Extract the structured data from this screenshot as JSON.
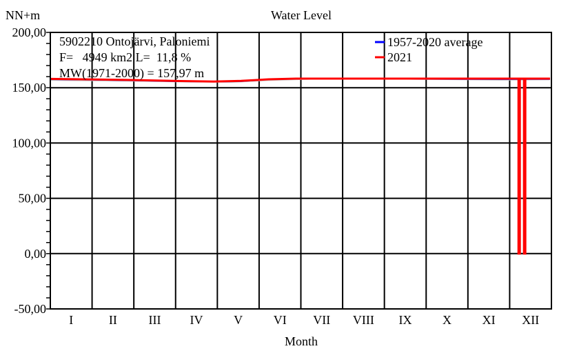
{
  "chart_data": {
    "type": "line",
    "title": "Water Level",
    "ylabel": "NN+m",
    "xlabel": "Month",
    "ylim": [
      -50,
      200
    ],
    "yticks": [
      "200,00",
      "150,00",
      "100,00",
      "50,00",
      "0,00",
      "-50,00"
    ],
    "ytick_values": [
      200,
      150,
      100,
      50,
      0,
      -50
    ],
    "categories": [
      "I",
      "II",
      "III",
      "IV",
      "V",
      "VI",
      "VII",
      "VIII",
      "IX",
      "X",
      "XI",
      "XII"
    ],
    "grid": true,
    "legend_position": "top-right",
    "info": {
      "station": "5902210 Ontojärvi, Paloniemi",
      "area": "F=   4949 km2 L=  11,8 %",
      "mean": "MW(1971-2000) = 157,97 m"
    },
    "band": {
      "color": "#c0c0c0",
      "x": [
        1,
        60,
        100,
        135,
        160,
        200,
        260,
        330,
        365
      ],
      "low": [
        156.3,
        155.6,
        154.8,
        154.6,
        156.2,
        157.6,
        157.3,
        156.5,
        156.8
      ],
      "high": [
        157.6,
        156.8,
        156.0,
        155.6,
        157.2,
        158.3,
        158.2,
        157.6,
        157.8
      ]
    },
    "series": [
      {
        "name": "1957-2020 average",
        "color": "#0000ff",
        "x": [
          1,
          30,
          60,
          90,
          120,
          140,
          160,
          180,
          240,
          300,
          335,
          365
        ],
        "y": [
          157.6,
          157.2,
          156.6,
          155.8,
          155.4,
          155.8,
          157.5,
          158.1,
          158.0,
          157.8,
          157.7,
          157.8
        ]
      },
      {
        "name": "2021",
        "color": "#ff0000",
        "x": [
          1,
          30,
          60,
          90,
          120,
          140,
          160,
          180,
          240,
          300,
          335,
          342,
          342,
          343,
          343,
          346,
          346,
          347,
          347,
          352,
          365
        ],
        "y": [
          158.0,
          157.5,
          157.0,
          156.2,
          155.6,
          156.2,
          157.6,
          158.2,
          158.2,
          158.2,
          158.2,
          158.2,
          0,
          0,
          158.2,
          158.2,
          0,
          0,
          158.2,
          158.2,
          158.2
        ]
      }
    ]
  }
}
